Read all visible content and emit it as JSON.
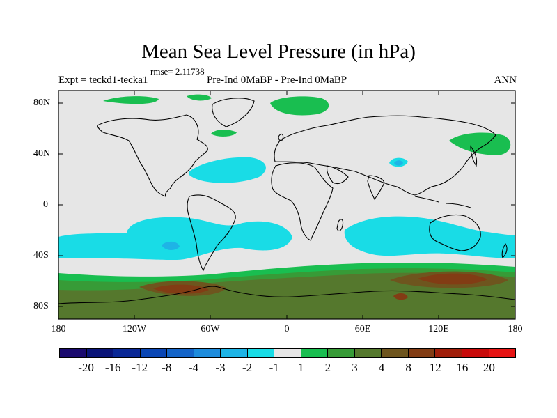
{
  "title": "Mean Sea Level Pressure (in hPa)",
  "rmse": "rmse= 2.11738",
  "left_string": "Expt = teckd1-tecka1",
  "center_string": "Pre-Ind 0MaBP - Pre-Ind 0MaBP",
  "right_string": "ANN",
  "lat_labels": [
    "80N",
    "40N",
    "0",
    "40S",
    "80S"
  ],
  "lon_labels": [
    "180",
    "120W",
    "60W",
    "0",
    "60E",
    "120E",
    "180"
  ],
  "colorbar": {
    "colors": [
      "#1a0a6e",
      "#0a1478",
      "#0a2896",
      "#0a46b4",
      "#1464c8",
      "#1e8cdc",
      "#1eb4e6",
      "#19dce6",
      "#e6e6e6",
      "#19be50",
      "#379b37",
      "#55782d",
      "#6e551e",
      "#823c14",
      "#a01e0a",
      "#c80a0a",
      "#e61414"
    ],
    "labels": [
      "-20",
      "-16",
      "-12",
      "-8",
      "-4",
      "-3",
      "-2",
      "-1",
      "1",
      "2",
      "3",
      "4",
      "8",
      "12",
      "16",
      "20"
    ]
  },
  "field_colors": {
    "background": "#e6e6e6",
    "neg_1_2": "#19dce6",
    "neg_2_3": "#1eb4e6",
    "pos_1_2": "#19be50",
    "pos_2_3": "#379b37",
    "pos_3_4": "#55782d",
    "pos_4_8": "#6e551e",
    "pos_8_12": "#823c14"
  }
}
